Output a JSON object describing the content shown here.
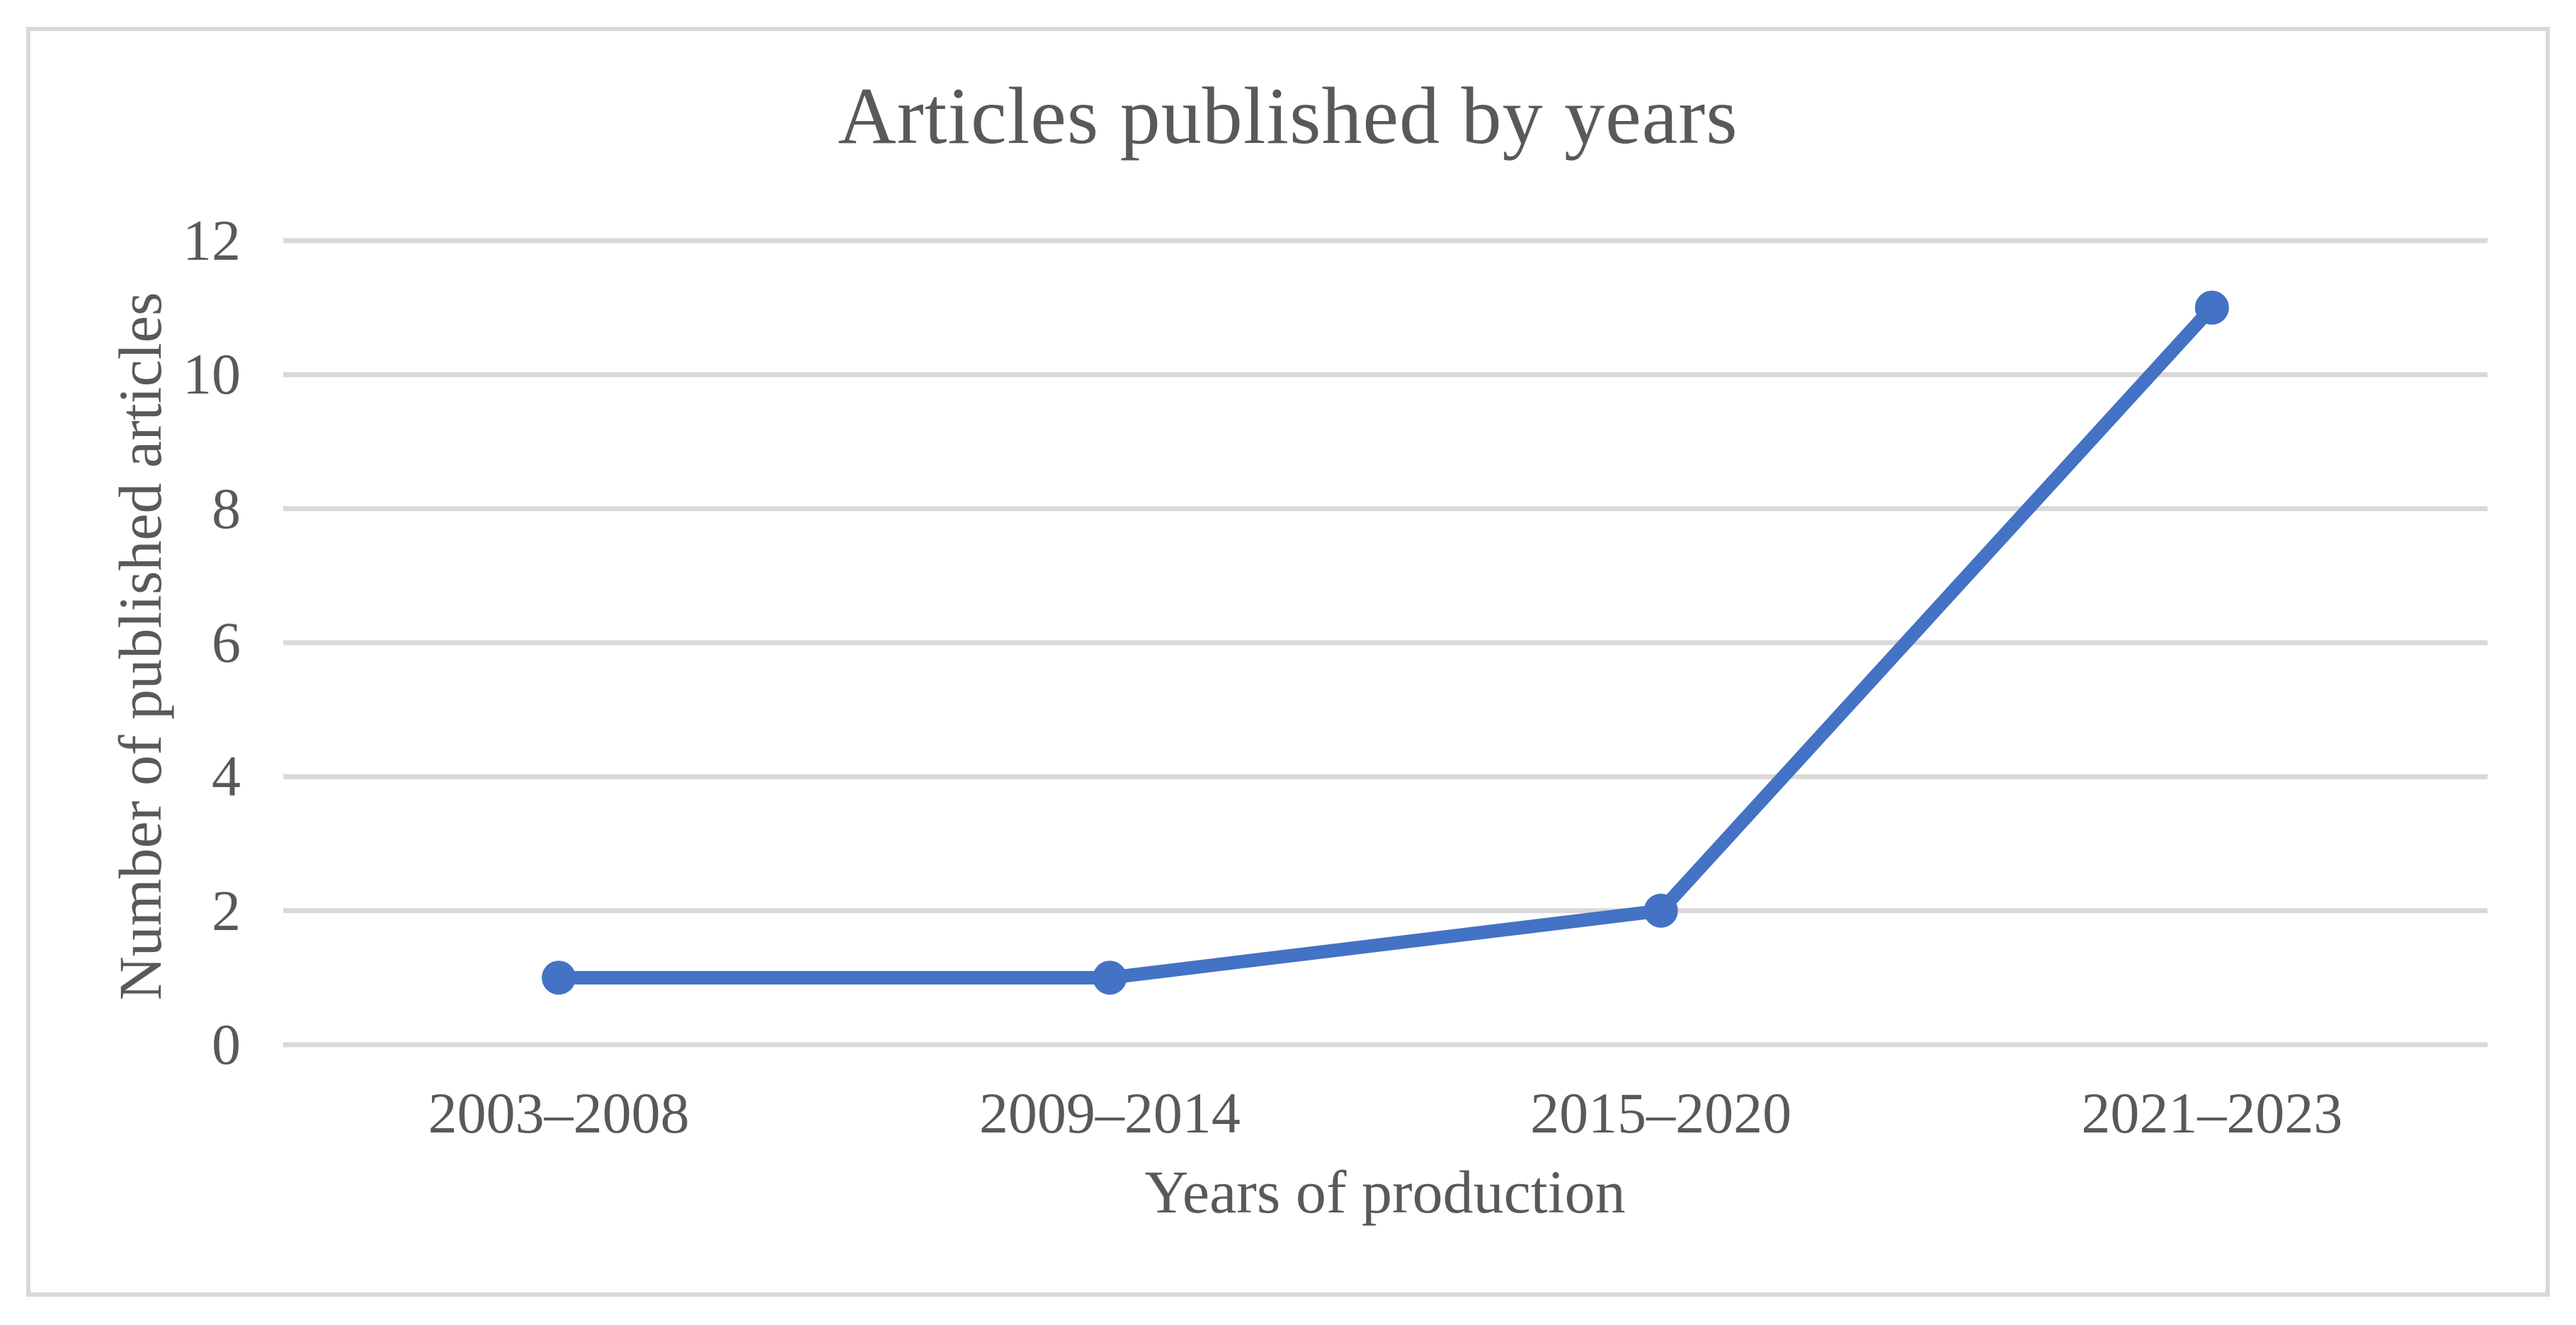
{
  "chart_data": {
    "type": "line",
    "title": "Articles published by years",
    "xlabel": "Years of production",
    "ylabel": "Number of published articles",
    "categories": [
      "2003–2008",
      "2009–2014",
      "2015–2020",
      "2021–2023"
    ],
    "series": [
      {
        "name": "Number of published articles",
        "values": [
          1,
          1,
          2,
          11
        ]
      }
    ],
    "yticks": [
      0,
      2,
      4,
      6,
      8,
      10,
      12
    ],
    "ylim": [
      0,
      12
    ],
    "grid": "horizontal-only",
    "legend_position": "none",
    "marker": "circle",
    "colors": {
      "line": "#4472C4",
      "marker": "#4472C4",
      "gridline": "#D9D9D9",
      "frame_border": "#D9D9D9",
      "text": "#595959",
      "background": "#FFFFFF"
    }
  }
}
